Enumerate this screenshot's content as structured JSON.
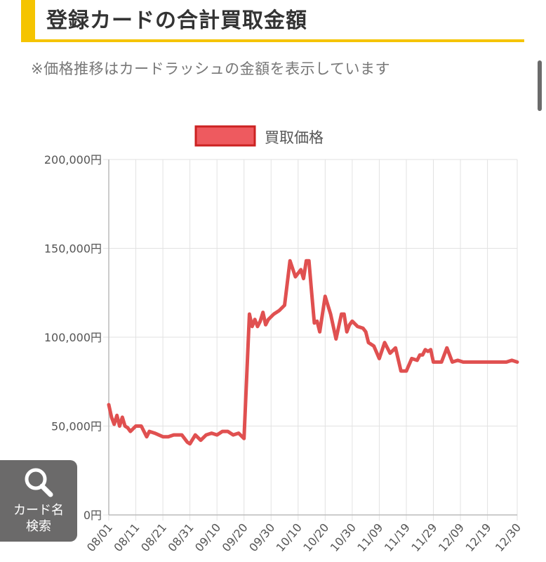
{
  "page": {
    "title": "登録カードの合計買取金額",
    "note": "※価格推移はカードラッシュの金額を表示しています"
  },
  "search_button": {
    "icon": "search-icon",
    "label_line1": "カード名",
    "label_line2": "検索"
  },
  "colors": {
    "accent": "#f5c400",
    "series": "#e05050",
    "legend_fill": "#ee5a5f",
    "legend_border": "#cc2222"
  },
  "chart_data": {
    "type": "line",
    "legend": [
      "買取価格"
    ],
    "legend_position": "top",
    "grid": true,
    "ylim": [
      0,
      200000
    ],
    "yticks": [
      "0円",
      "50,000円",
      "100,000円",
      "150,000円",
      "200,000円"
    ],
    "yticks_values": [
      0,
      50000,
      100000,
      150000,
      200000
    ],
    "xticks": [
      "08/01",
      "08/11",
      "08/21",
      "08/31",
      "09/10",
      "09/20",
      "09/30",
      "10/10",
      "10/20",
      "10/30",
      "11/09",
      "11/19",
      "11/29",
      "12/09",
      "12/19",
      "12/30"
    ],
    "series": [
      {
        "name": "買取価格",
        "x": [
          "08/01",
          "08/02",
          "08/03",
          "08/04",
          "08/05",
          "08/06",
          "08/07",
          "08/08",
          "08/09",
          "08/11",
          "08/13",
          "08/15",
          "08/16",
          "08/18",
          "08/21",
          "08/23",
          "08/25",
          "08/28",
          "08/30",
          "08/31",
          "09/02",
          "09/04",
          "09/06",
          "09/08",
          "09/10",
          "09/12",
          "09/14",
          "09/16",
          "09/18",
          "09/20",
          "09/22",
          "09/23",
          "09/24",
          "09/25",
          "09/26",
          "09/27",
          "09/28",
          "09/29",
          "10/01",
          "10/03",
          "10/05",
          "10/07",
          "10/09",
          "10/11",
          "10/12",
          "10/13",
          "10/14",
          "10/15",
          "10/16",
          "10/17",
          "10/18",
          "10/20",
          "10/22",
          "10/24",
          "10/26",
          "10/27",
          "10/28",
          "10/29",
          "10/30",
          "11/01",
          "11/03",
          "11/04",
          "11/05",
          "11/07",
          "11/09",
          "11/11",
          "11/13",
          "11/15",
          "11/17",
          "11/19",
          "11/21",
          "11/23",
          "11/24",
          "11/25",
          "11/26",
          "11/27",
          "11/28",
          "11/29",
          "11/30",
          "12/02",
          "12/04",
          "12/06",
          "12/08",
          "12/10",
          "12/12",
          "12/14",
          "12/16",
          "12/18",
          "12/20",
          "12/22",
          "12/24",
          "12/25",
          "12/26",
          "12/28",
          "12/30"
        ],
        "values": [
          62000,
          55000,
          51000,
          56000,
          50000,
          55000,
          50000,
          49000,
          47000,
          50000,
          50000,
          44000,
          47000,
          46000,
          44000,
          44000,
          45000,
          45000,
          41000,
          40000,
          45000,
          42000,
          45000,
          46000,
          45000,
          47000,
          47000,
          45000,
          46000,
          43000,
          113000,
          106000,
          110000,
          106000,
          109000,
          114000,
          107000,
          110000,
          113000,
          115000,
          118000,
          143000,
          134000,
          138000,
          133000,
          143000,
          143000,
          125000,
          108000,
          109000,
          103000,
          123000,
          113000,
          99000,
          113000,
          113000,
          103000,
          107000,
          109000,
          106000,
          105000,
          103000,
          97000,
          95000,
          88000,
          97000,
          91000,
          94000,
          81000,
          81000,
          88000,
          87000,
          90000,
          90000,
          93000,
          92000,
          93000,
          86000,
          86000,
          86000,
          94000,
          86000,
          87000,
          86000,
          86000,
          86000,
          86000,
          86000,
          86000,
          86000,
          86000,
          86000,
          86000,
          87000,
          86000
        ]
      }
    ]
  }
}
